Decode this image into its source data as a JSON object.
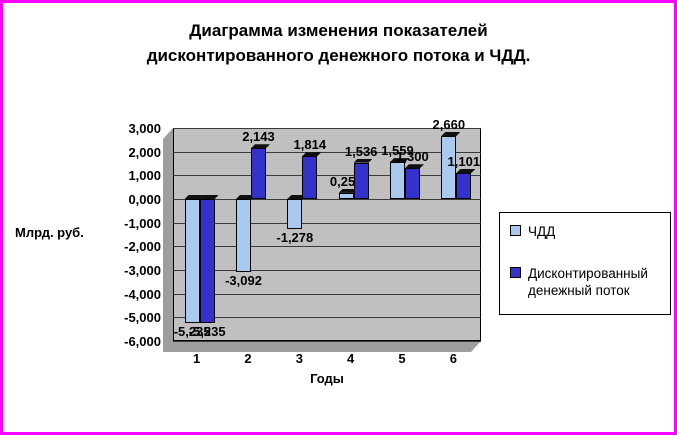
{
  "frame": {
    "border_color": "#FF00FF",
    "plot_bg_color": "#C0C0C0",
    "wall_color": "#9E9E9E"
  },
  "title": {
    "line1": "Диаграмма изменения показателей",
    "line2": "дисконтированного денежного потока и ЧДД."
  },
  "y_axis_title": "Млрд. руб.",
  "x_axis_title": "Годы",
  "legend": {
    "items": [
      {
        "label": "ЧДД"
      },
      {
        "label": "Дисконтированный денежный поток"
      }
    ]
  },
  "chart_data": {
    "type": "bar",
    "title": "Диаграмма изменения показателей дисконтированного денежного потока и ЧДД.",
    "xlabel": "Годы",
    "ylabel": "Млрд. руб.",
    "categories": [
      "1",
      "2",
      "3",
      "4",
      "5",
      "6"
    ],
    "series": [
      {
        "name": "ЧДД",
        "color": "#A9C9EE",
        "values": [
          -5.235,
          -3.092,
          -1.278,
          0.259,
          1.559,
          2.66
        ],
        "labels": [
          "-5,235",
          "-3,092",
          "-1,278",
          "0,259",
          "1,559",
          "2,660"
        ]
      },
      {
        "name": "Дисконтированный денежный поток",
        "color": "#3333CC",
        "values": [
          -5.235,
          2.143,
          1.814,
          1.536,
          1.3,
          1.101
        ],
        "labels": [
          "-5,235",
          "2,143",
          "1,814",
          "1,536",
          "1,300",
          "1,101"
        ]
      }
    ],
    "ylim": [
      -6,
      3
    ],
    "ytick_step": 1,
    "ytick_labels": [
      "3,000",
      "2,000",
      "1,000",
      "0,000",
      "-1,000",
      "-2,000",
      "-3,000",
      "-4,000",
      "-5,000",
      "-6,000"
    ],
    "grid": true,
    "legend_position": "right",
    "style": "3d-column"
  }
}
